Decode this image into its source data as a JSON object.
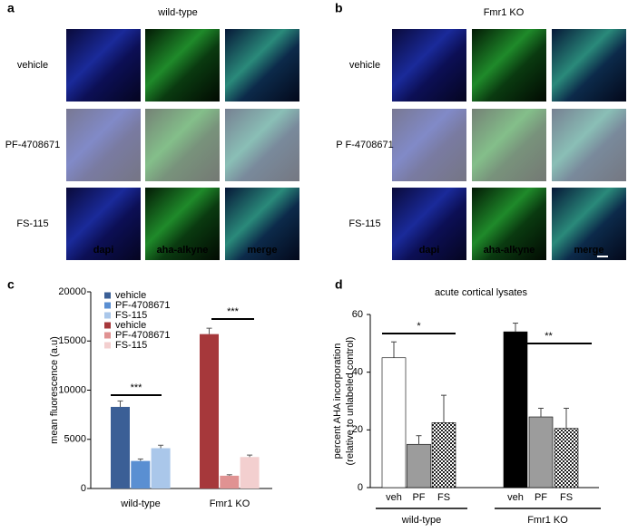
{
  "panels": [
    {
      "letter": "a",
      "title": "wild-type",
      "rows": [
        "vehicle",
        "PF-4708671",
        "FS-115"
      ],
      "channels": [
        "dapi",
        "aha-alkyne",
        "merge"
      ]
    },
    {
      "letter": "b",
      "title": "Fmr1 KO",
      "rows": [
        "vehicle",
        "P F-4708671",
        "FS-115"
      ],
      "channels": [
        "dapi",
        "aha-alkyne",
        "merge"
      ]
    }
  ],
  "chart_data": [
    {
      "type": "bar",
      "letter": "c",
      "ylabel": "mean fluorescence (a.u)",
      "categories": [
        "wild-type",
        "Fmr1 KO"
      ],
      "series": [
        {
          "name": "vehicle",
          "color": "#3b5f96",
          "values": [
            8300,
            null
          ],
          "errors": [
            600,
            null
          ]
        },
        {
          "name": "PF-4708671",
          "color": "#5a8fd2",
          "values": [
            2800,
            null
          ],
          "errors": [
            200,
            null
          ]
        },
        {
          "name": "FS-115",
          "color": "#aac7ea",
          "values": [
            4100,
            null
          ],
          "errors": [
            300,
            null
          ]
        },
        {
          "name": "vehicle",
          "color": "#a6383b",
          "values": [
            null,
            15700
          ],
          "errors": [
            null,
            600
          ]
        },
        {
          "name": "PF-4708671",
          "color": "#e09292",
          "values": [
            null,
            1300
          ],
          "errors": [
            null,
            100
          ]
        },
        {
          "name": "FS-115",
          "color": "#f3cfcf",
          "values": [
            null,
            3200
          ],
          "errors": [
            null,
            200
          ]
        }
      ],
      "annotations": [
        "***",
        "***"
      ],
      "ylim": [
        0,
        20000
      ],
      "yticks": [
        0,
        5000,
        10000,
        15000,
        20000
      ]
    },
    {
      "type": "bar",
      "letter": "d",
      "title": "acute cortical lysates",
      "ylabel": [
        "percent AHA incorporation",
        "(relative to unlabeled control)"
      ],
      "categories": [
        "veh",
        "PF",
        "FS",
        "veh",
        "PF",
        "FS"
      ],
      "groups": [
        "wild-type",
        "Fmr1 KO"
      ],
      "values": [
        45,
        15,
        22.5,
        54,
        24.5,
        20.5
      ],
      "errors": [
        5.5,
        3,
        9.5,
        3,
        3,
        7
      ],
      "colors": [
        "#ffffff",
        "#9c9c9c",
        "#ffffff",
        "#000000",
        "#9c9c9c",
        "#ffffff"
      ],
      "hatch": [
        false,
        false,
        true,
        false,
        false,
        true
      ],
      "annotations": [
        "*",
        "**"
      ],
      "ylim": [
        0,
        60
      ],
      "yticks": [
        0,
        20,
        40,
        60
      ]
    }
  ]
}
